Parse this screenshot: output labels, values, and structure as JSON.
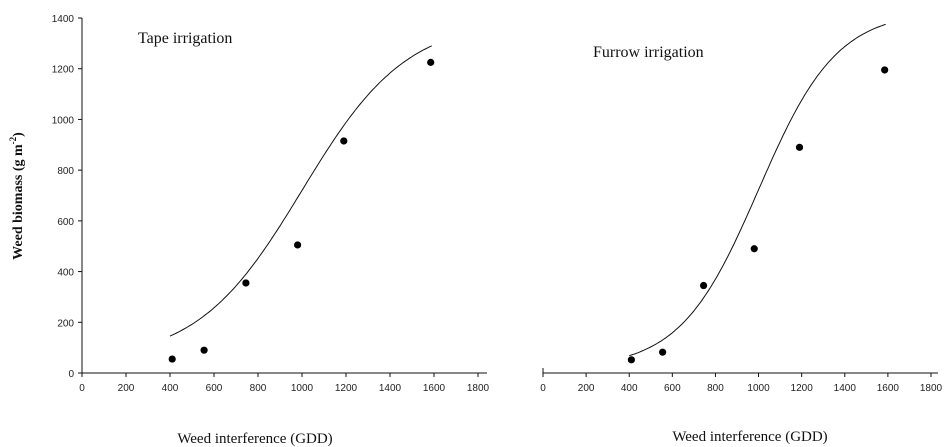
{
  "chart_data": [
    {
      "type": "scatter",
      "title": "Tape irrigation",
      "xlabel": "Weed interference (GDD)",
      "ylabel": "Weed biomass (g m",
      "ylabel_sup": "-2",
      "ylabel_close": ")",
      "xlim": [
        0,
        1800
      ],
      "ylim": [
        0,
        1400
      ],
      "xticks": [
        "0",
        "200",
        "400",
        "600",
        "800",
        "1000",
        "1200",
        "1400",
        "1600",
        "1800"
      ],
      "yticks": [
        "0",
        "200",
        "400",
        "600",
        "800",
        "1000",
        "1200",
        "1400"
      ],
      "points": [
        {
          "x": 410,
          "y": 55
        },
        {
          "x": 555,
          "y": 90
        },
        {
          "x": 745,
          "y": 355
        },
        {
          "x": 980,
          "y": 505
        },
        {
          "x": 1190,
          "y": 915
        },
        {
          "x": 1585,
          "y": 1225
        }
      ],
      "fit": {
        "type": "sigmoid",
        "x_range": [
          400,
          1590
        ]
      }
    },
    {
      "type": "scatter",
      "title": "Furrow irrigation",
      "xlabel": "Weed interference (GDD)",
      "xlim": [
        0,
        1800
      ],
      "ylim": [
        0,
        1400
      ],
      "xticks": [
        "0",
        "200",
        "400",
        "600",
        "800",
        "1000",
        "1200",
        "1400",
        "1600",
        "1800"
      ],
      "points": [
        {
          "x": 410,
          "y": 52
        },
        {
          "x": 555,
          "y": 82
        },
        {
          "x": 745,
          "y": 345
        },
        {
          "x": 980,
          "y": 490
        },
        {
          "x": 1190,
          "y": 890
        },
        {
          "x": 1585,
          "y": 1195
        }
      ],
      "fit": {
        "type": "sigmoid",
        "x_range": [
          400,
          1590
        ]
      }
    }
  ]
}
